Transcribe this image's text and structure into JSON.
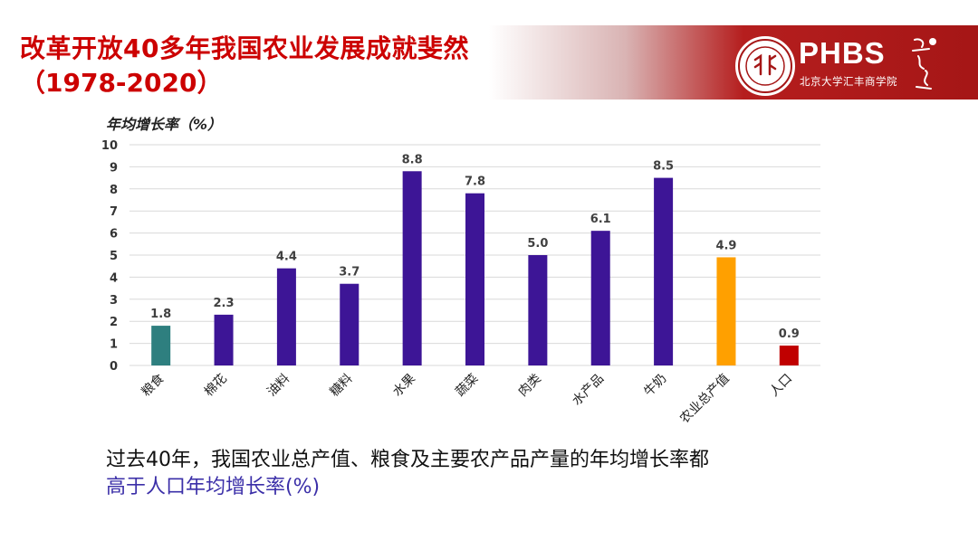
{
  "header": {
    "title_line1": "改革开放40多年我国农业发展成就斐然",
    "title_line2": "（1978-2020）",
    "brand": "PHBS",
    "brand_sub": "北京大学汇丰商学院"
  },
  "chart_data": {
    "type": "bar",
    "ylabel": "年均增长率（%）",
    "ylim": [
      0,
      10
    ],
    "yticks": [
      "0",
      "1",
      "2",
      "3",
      "4",
      "5",
      "6",
      "7",
      "8",
      "9",
      "10"
    ],
    "grid": true,
    "categories": [
      "粮食",
      "棉花",
      "油料",
      "糖料",
      "水果",
      "蔬菜",
      "肉类",
      "水产品",
      "牛奶",
      "农业总产值",
      "人口"
    ],
    "values": [
      1.8,
      2.3,
      4.4,
      3.7,
      8.8,
      7.8,
      5.0,
      6.1,
      8.5,
      4.9,
      0.9
    ],
    "value_labels": [
      "1.8",
      "2.3",
      "4.4",
      "3.7",
      "8.8",
      "7.8",
      "5.0",
      "6.1",
      "8.5",
      "4.9",
      "0.9"
    ],
    "colors": [
      "#2e7f7f",
      "#3d1596",
      "#3d1596",
      "#3d1596",
      "#3d1596",
      "#3d1596",
      "#3d1596",
      "#3d1596",
      "#3d1596",
      "#ffa000",
      "#c00000"
    ]
  },
  "caption": {
    "line1": "过去40年，我国农业总产值、粮食及主要农产品产量的年均增长率都",
    "line2": "高于人口年均增长率(%)"
  },
  "colors": {
    "title": "#cc0000",
    "accent_red": "#a51616",
    "highlight": "#3b2fa8"
  }
}
